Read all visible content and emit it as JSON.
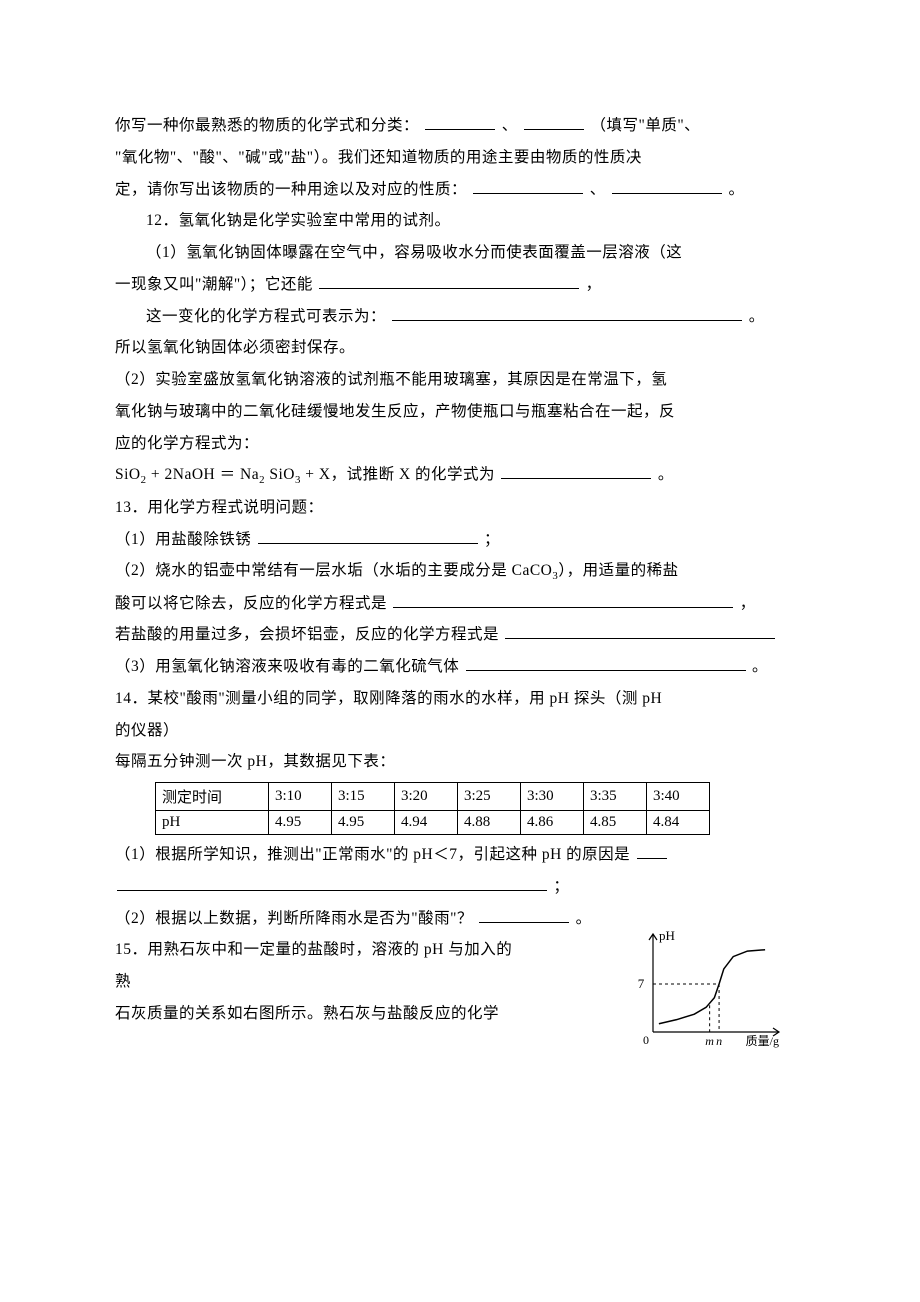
{
  "q11": {
    "line1_a": "你写一种你最熟悉的物质的化学式和分类：",
    "blank1_w": 70,
    "sep1": "、",
    "blank2_w": 60,
    "line1_b": "（填写\"单质\"、",
    "line2": "\"氧化物\"、\"酸\"、\"碱\"或\"盐\"）。我们还知道物质的用途主要由物质的性质决",
    "line3_a": "定，请你写出该物质的一种用途以及对应的性质：",
    "blank3_w": 110,
    "sep2": "、",
    "blank4_w": 110,
    "tail": "。"
  },
  "q12": {
    "head": "12．氢氧化钠是化学实验室中常用的试剂。",
    "p1a": "（1）氢氧化钠固体曝露在空气中，容易吸收水分而使表面覆盖一层溶液（这",
    "p1b_a": "一现象又叫\"潮解\"）；它还能",
    "p1b_blank_w": 260,
    "p1b_b": "，",
    "p1c_a": "这一变化的化学方程式可表示为：",
    "p1c_blank_w": 350,
    "p1c_b": "。",
    "p1d": "所以氢氧化钠固体必须密封保存。",
    "p2a": "（2）实验室盛放氢氧化钠溶液的试剂瓶不能用玻璃塞，其原因是在常温下，氢",
    "p2b": "氧化钠与玻璃中的二氧化硅缓慢地发生反应，产物使瓶口与瓶塞粘合在一起，反",
    "p2c": "应的化学方程式为：",
    "eq_a": "SiO",
    "eq_b": " + 2NaOH ＝ Na",
    "eq_c": "SiO",
    "eq_d": " + X，试推断 X 的化学式为",
    "eq_blank_w": 150,
    "eq_e": "。"
  },
  "q13": {
    "head": "13．用化学方程式说明问题：",
    "p1_a": "（1）用盐酸除铁锈",
    "p1_blank_w": 220,
    "p1_b": "；",
    "p2a": "（2）烧水的铝壶中常结有一层水垢（水垢的主要成分是 CaCO",
    "p2a_tail": "），用适量的稀盐",
    "p2b_a": "酸可以将它除去，反应的化学方程式是",
    "p2b_blank_w": 340,
    "p2b_b": "，",
    "p2c_a": "若盐酸的用量过多，会损坏铝壶，反应的化学方程式是",
    "p2c_blank_w": 270,
    "p3_a": "（3）用氢氧化钠溶液来吸收有毒的二氧化硫气体",
    "p3_blank_w": 280,
    "p3_b": "。"
  },
  "q14": {
    "head_a": "14．某校\"酸雨\"测量小组的同学，取刚降落的雨水的水样，用 pH 探头（测 pH",
    "head_b": "的仪器）",
    "head_c": "每隔五分钟测一次 pH，其数据见下表：",
    "table": {
      "columns": [
        "测定时间",
        "3:10",
        "3:15",
        "3:20",
        "3:25",
        "3:30",
        "3:35",
        "3:40"
      ],
      "rows": [
        [
          "pH",
          "4.95",
          "4.95",
          "4.94",
          "4.88",
          "4.86",
          "4.85",
          "4.84"
        ]
      ],
      "border_color": "#000000",
      "font_size": 15
    },
    "p1_a": "（1）根据所学知识，推测出\"正常雨水\"的 pH＜7，引起这种 pH 的原因是",
    "p1_blank_w": 30,
    "p1_line2_blank_w": 430,
    "p1_b": "；",
    "p2_a": "（2）根据以上数据，判断所降雨水是否为\"酸雨\"？",
    "p2_blank_w": 90,
    "p2_b": "。"
  },
  "q15": {
    "line1": "15．用熟石灰中和一定量的盐酸时，溶液的 pH 与加入的",
    "line2": "熟",
    "line3": "石灰质量的关系如右图所示。熟石灰与盐酸反应的化学",
    "chart": {
      "type": "line",
      "y_label": "pH",
      "x_label": "质量/g",
      "y_tick_label": "7",
      "x_ticks": [
        "m",
        "n"
      ],
      "axis_color": "#000000",
      "curve_color": "#000000",
      "dash_color": "#000000",
      "line_width": 1.5,
      "xlim": [
        0,
        10
      ],
      "ylim": [
        0,
        14
      ],
      "curve_points": [
        [
          0.5,
          1.2
        ],
        [
          2.0,
          1.8
        ],
        [
          3.5,
          2.6
        ],
        [
          4.5,
          3.6
        ],
        [
          5.2,
          5.0
        ],
        [
          5.6,
          7.0
        ],
        [
          6.0,
          9.2
        ],
        [
          6.8,
          11.0
        ],
        [
          8.0,
          11.8
        ],
        [
          9.5,
          12.0
        ]
      ],
      "origin_label": "0"
    }
  }
}
